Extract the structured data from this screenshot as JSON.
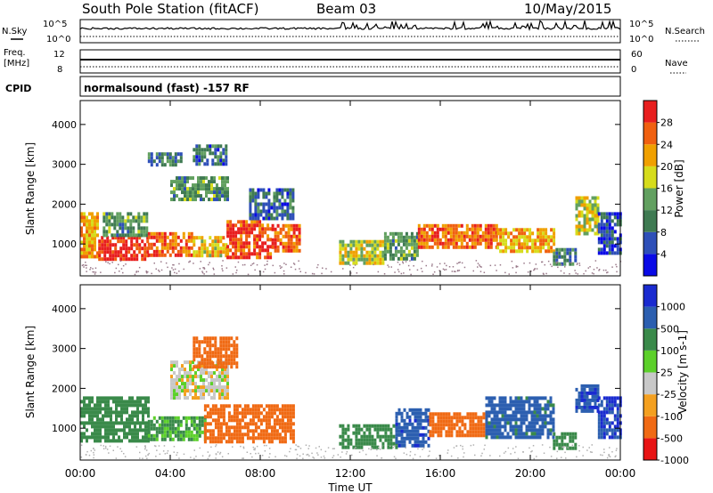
{
  "header": {
    "station": "South Pole Station (fitACF)",
    "beam": "Beam 03",
    "date": "10/May/2015"
  },
  "top_panels": {
    "nsky_label": "N.Sky",
    "nsky_ticks": [
      "10^5",
      "10^0"
    ],
    "nsearch_label": "N.Search",
    "nsearch_ticks": [
      "10^5",
      "10^0"
    ],
    "freq_label": "Freq.",
    "freq_unit": "[MHz]",
    "freq_ticks": [
      "12",
      "8"
    ],
    "nave_label": "Nave",
    "nave_ticks": [
      "60",
      "0"
    ],
    "cpid_label": "CPID",
    "cpid_value": "normalsound (fast) -157 RF"
  },
  "colors": {
    "power_scale": [
      "#0a0ae6",
      "#2e4fb8",
      "#3f7a52",
      "#62a060",
      "#d6dc1c",
      "#f0a000",
      "#f06010",
      "#e81e1e"
    ],
    "velocity_scale": [
      "#e81414",
      "#f06a14",
      "#f4a020",
      "#c8c8c8",
      "#5cd02a",
      "#3a8a4a",
      "#2c5fb0",
      "#1a2bd0"
    ],
    "ground_scatter": "#9a7a8a"
  },
  "chart_data": [
    {
      "type": "heatmap",
      "name": "power",
      "xlabel": "Time UT",
      "ylabel": "Slant Range [km]",
      "xlim": [
        0,
        24
      ],
      "ylim": [
        200,
        4600
      ],
      "x_ticks": [
        "00:00",
        "04:00",
        "08:00",
        "12:00",
        "16:00",
        "20:00",
        "00:00"
      ],
      "y_ticks": [
        1000,
        2000,
        3000,
        4000
      ],
      "colorbar_label": "Power [dB]",
      "colorbar_ticks": [
        4,
        8,
        12,
        16,
        20,
        24,
        28
      ],
      "colorbar_range": [
        0,
        32
      ],
      "regions": [
        {
          "t": [
            0.0,
            0.8
          ],
          "r": [
            700,
            1800
          ],
          "v": 22
        },
        {
          "t": [
            0.8,
            3.0
          ],
          "r": [
            600,
            1200
          ],
          "v": 30
        },
        {
          "t": [
            1.0,
            3.0
          ],
          "r": [
            1200,
            1800
          ],
          "v": 12
        },
        {
          "t": [
            3.0,
            5.0
          ],
          "r": [
            700,
            1300
          ],
          "v": 26
        },
        {
          "t": [
            5.0,
            6.5
          ],
          "r": [
            700,
            1200
          ],
          "v": 20
        },
        {
          "t": [
            6.5,
            8.5
          ],
          "r": [
            700,
            1600
          ],
          "v": 28
        },
        {
          "t": [
            8.5,
            9.8
          ],
          "r": [
            800,
            1500
          ],
          "v": 26
        },
        {
          "t": [
            7.5,
            9.5
          ],
          "r": [
            1600,
            2400
          ],
          "v": 8
        },
        {
          "t": [
            4.0,
            6.5
          ],
          "r": [
            2100,
            2700
          ],
          "v": 12
        },
        {
          "t": [
            3.0,
            4.5
          ],
          "r": [
            3000,
            3300
          ],
          "v": 10
        },
        {
          "t": [
            5.0,
            6.5
          ],
          "r": [
            3000,
            3500
          ],
          "v": 8
        },
        {
          "t": [
            11.5,
            13.5
          ],
          "r": [
            500,
            1100
          ],
          "v": 18
        },
        {
          "t": [
            13.5,
            15.0
          ],
          "r": [
            600,
            1300
          ],
          "v": 12
        },
        {
          "t": [
            15.0,
            18.5
          ],
          "r": [
            900,
            1500
          ],
          "v": 26
        },
        {
          "t": [
            18.5,
            21.0
          ],
          "r": [
            800,
            1400
          ],
          "v": 22
        },
        {
          "t": [
            21.0,
            22.0
          ],
          "r": [
            500,
            900
          ],
          "v": 10
        },
        {
          "t": [
            22.0,
            23.0
          ],
          "r": [
            1300,
            2200
          ],
          "v": 18
        },
        {
          "t": [
            23.0,
            24.0
          ],
          "r": [
            800,
            1800
          ],
          "v": 6
        }
      ]
    },
    {
      "type": "heatmap",
      "name": "velocity",
      "xlabel": "Time UT",
      "ylabel": "Slant Range [km]",
      "xlim": [
        0,
        24
      ],
      "ylim": [
        200,
        4600
      ],
      "x_ticks": [
        "00:00",
        "04:00",
        "08:00",
        "12:00",
        "16:00",
        "20:00",
        "00:00"
      ],
      "y_ticks": [
        1000,
        2000,
        3000,
        4000
      ],
      "colorbar_label": "Velocity [m s-1]",
      "colorbar_ticks": [
        "1000",
        "500",
        "100",
        "25",
        "-25",
        "-100",
        "-500",
        "-1000"
      ],
      "regions": [
        {
          "t": [
            0.0,
            3.0
          ],
          "r": [
            700,
            1800
          ],
          "v": 300
        },
        {
          "t": [
            3.0,
            5.5
          ],
          "r": [
            700,
            1300
          ],
          "v": 120
        },
        {
          "t": [
            5.5,
            9.5
          ],
          "r": [
            700,
            1600
          ],
          "v": -200
        },
        {
          "t": [
            4.0,
            6.5
          ],
          "r": [
            1800,
            2700
          ],
          "v": 0
        },
        {
          "t": [
            5.0,
            7.0
          ],
          "r": [
            2500,
            3300
          ],
          "v": -200
        },
        {
          "t": [
            11.5,
            14.0
          ],
          "r": [
            500,
            1100
          ],
          "v": 200
        },
        {
          "t": [
            14.0,
            15.5
          ],
          "r": [
            600,
            1500
          ],
          "v": 800
        },
        {
          "t": [
            15.5,
            18.0
          ],
          "r": [
            800,
            1400
          ],
          "v": -150
        },
        {
          "t": [
            18.0,
            21.0
          ],
          "r": [
            800,
            1800
          ],
          "v": 700
        },
        {
          "t": [
            21.0,
            22.0
          ],
          "r": [
            500,
            900
          ],
          "v": 300
        },
        {
          "t": [
            22.0,
            23.0
          ],
          "r": [
            1400,
            2100
          ],
          "v": 900
        },
        {
          "t": [
            23.0,
            24.0
          ],
          "r": [
            800,
            1800
          ],
          "v": 1000
        }
      ]
    }
  ]
}
